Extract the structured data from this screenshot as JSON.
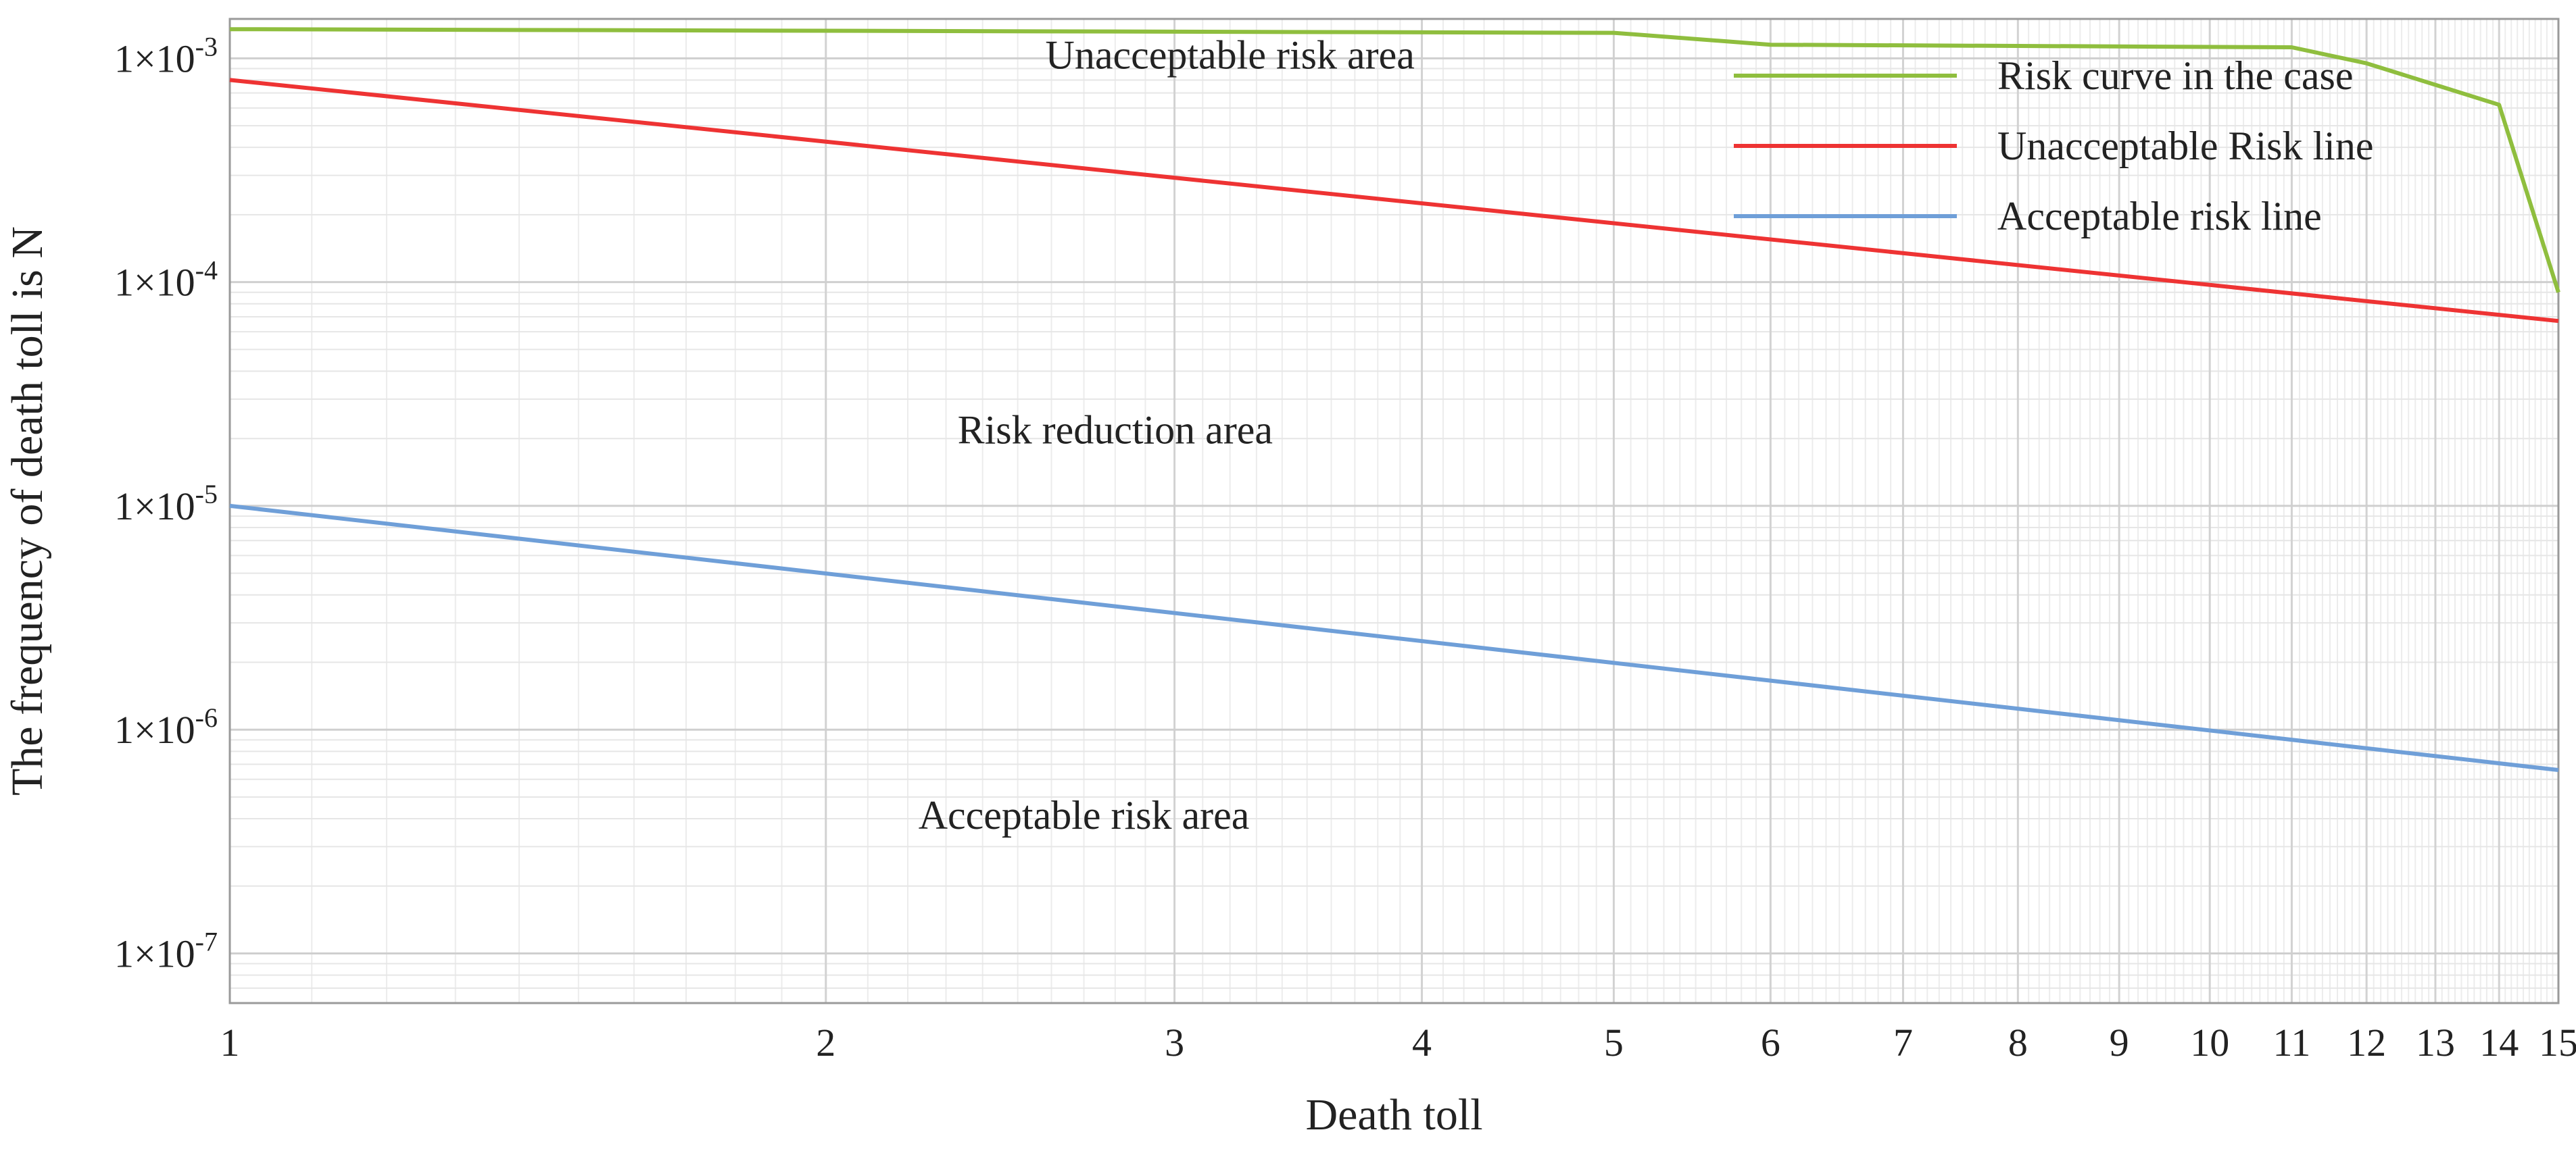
{
  "chart_data": {
    "type": "line",
    "title": "",
    "xlabel": "Death toll",
    "ylabel": "The frequency of death toll is N",
    "xscale": "log",
    "yscale": "log",
    "xlim": [
      1,
      15
    ],
    "ylim": [
      6e-08,
      0.0015
    ],
    "grid": true,
    "legend_position": "top-right",
    "x_ticks": [
      1,
      2,
      3,
      4,
      5,
      6,
      7,
      8,
      9,
      10,
      11,
      12,
      13,
      14,
      15
    ],
    "x_tick_labels": [
      "1",
      "2",
      "3",
      "4",
      "5",
      "6",
      "7",
      "8",
      "9",
      "10",
      "11",
      "12",
      "13",
      "14",
      "15"
    ],
    "y_ticks": [
      0.001,
      0.0001,
      1e-05,
      1e-06,
      1e-07
    ],
    "y_tick_labels": [
      {
        "mantissa": "1×10",
        "exponent": "-3"
      },
      {
        "mantissa": "1×10",
        "exponent": "-4"
      },
      {
        "mantissa": "1×10",
        "exponent": "-5"
      },
      {
        "mantissa": "1×10",
        "exponent": "-6"
      },
      {
        "mantissa": "1×10",
        "exponent": "-7"
      }
    ],
    "series": [
      {
        "name": "Risk curve in the case",
        "color": "#8fbe3e",
        "x": [
          1,
          5,
          6,
          11,
          12,
          14,
          15
        ],
        "y": [
          0.00135,
          0.0013,
          0.00115,
          0.00112,
          0.00095,
          0.00062,
          9e-05
        ]
      },
      {
        "name": "Unacceptable Risk line",
        "color": "#ee3333",
        "x": [
          1,
          15
        ],
        "y": [
          0.0008,
          6.7e-05
        ]
      },
      {
        "name": "Acceptable risk line",
        "color": "#6f9fd8",
        "x": [
          1,
          15
        ],
        "y": [
          1e-05,
          6.6e-07
        ]
      }
    ],
    "annotations": [
      {
        "text": "Unacceptable risk area",
        "x": 3.2,
        "y": 0.0009
      },
      {
        "text": "Risk reduction area",
        "x": 2.8,
        "y": 1.9e-05
      },
      {
        "text": "Acceptable risk area",
        "x": 2.7,
        "y": 3.6e-07
      }
    ]
  }
}
